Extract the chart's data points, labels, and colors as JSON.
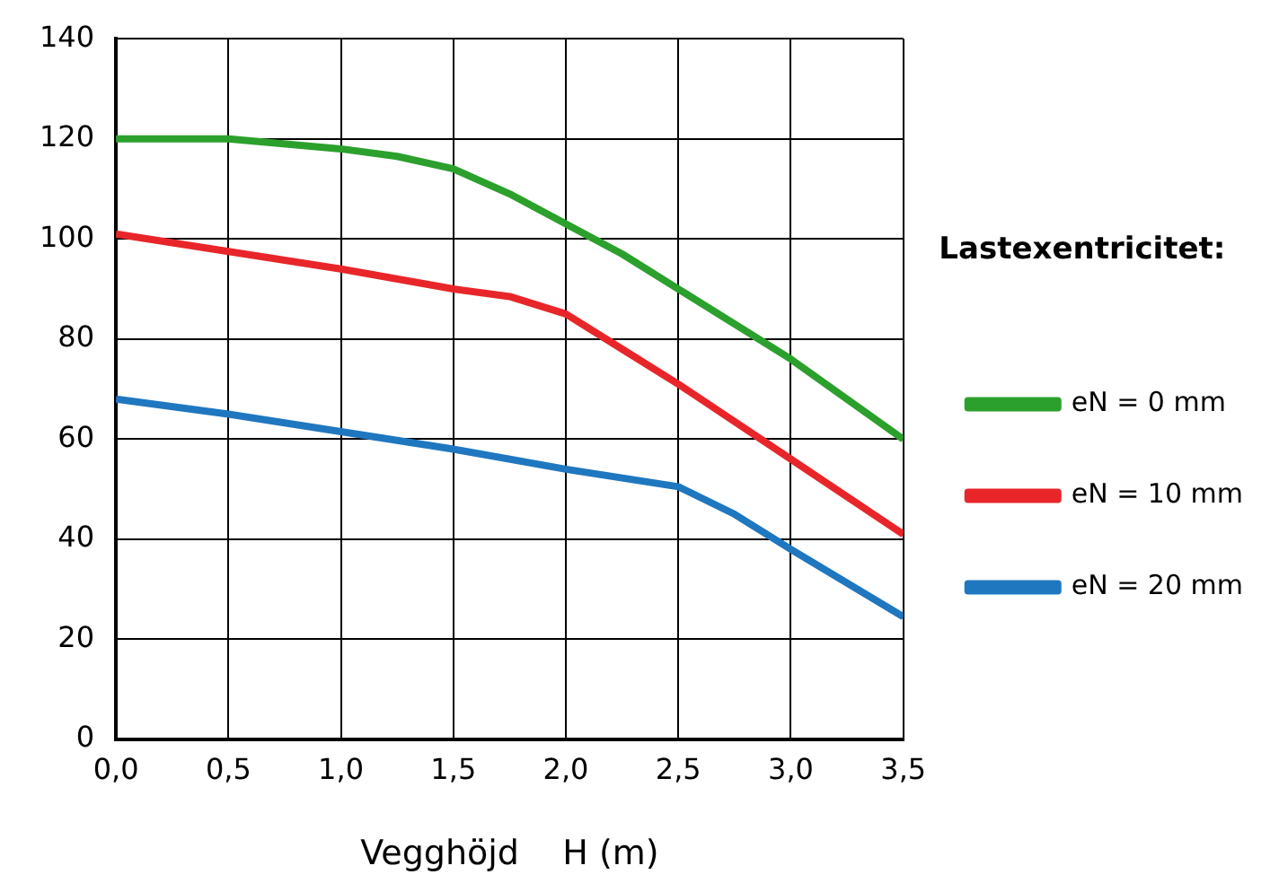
{
  "chart_data": {
    "type": "line",
    "xlabel": "Vegghöjd    H (m)",
    "legend_title": "Lastexentricitet:",
    "legend": "right",
    "grid": true,
    "marker": "none",
    "line_style": "solid",
    "xlim": [
      0,
      3.5
    ],
    "xticks": [
      {
        "value": 0,
        "label": "0,0"
      },
      {
        "value": 0.5,
        "label": "0,5"
      },
      {
        "value": 1,
        "label": "1,0"
      },
      {
        "value": 1.5,
        "label": "1,5"
      },
      {
        "value": 2,
        "label": "2,0"
      },
      {
        "value": 2.5,
        "label": "2,5"
      },
      {
        "value": 3,
        "label": "3,0"
      },
      {
        "value": 3.5,
        "label": "3,5"
      }
    ],
    "ylim": [
      0,
      140
    ],
    "yticks": [
      0,
      20,
      40,
      60,
      80,
      100,
      120,
      140
    ],
    "series": [
      {
        "name": "eN = 0 mm",
        "color": "#2ca02c",
        "x": [
          0,
          0.5,
          1,
          1.25,
          1.5,
          1.75,
          2,
          2.25,
          2.5,
          3,
          3.5
        ],
        "values": [
          120,
          120,
          118,
          116.5,
          114,
          109,
          103,
          97,
          90,
          76,
          60
        ]
      },
      {
        "name": "eN = 10 mm",
        "color": "#e8262a",
        "x": [
          0,
          0.5,
          1,
          1.5,
          1.75,
          2,
          2.25,
          2.5,
          3,
          3.5
        ],
        "values": [
          101,
          97.5,
          94,
          90,
          88.5,
          85,
          78,
          71,
          56,
          41
        ]
      },
      {
        "name": "eN = 20 mm",
        "color": "#1f77c0",
        "x": [
          0,
          0.5,
          1,
          1.5,
          2,
          2.5,
          2.75,
          3,
          3.5
        ],
        "values": [
          68,
          65,
          61.5,
          58,
          54,
          50.5,
          45,
          38,
          24.5
        ]
      }
    ]
  }
}
